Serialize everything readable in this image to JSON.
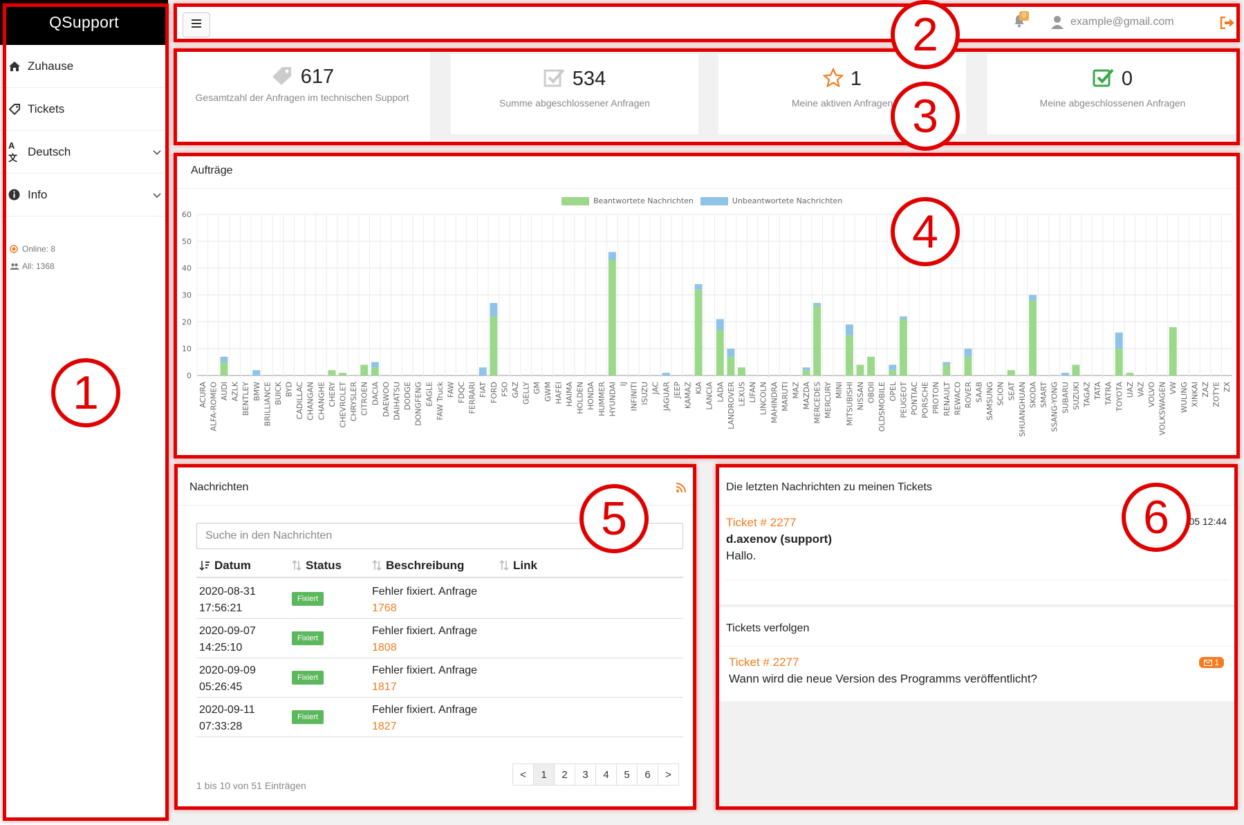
{
  "app": {
    "title": "QSupport"
  },
  "sidebar": {
    "items": [
      {
        "label": "Zuhause",
        "icon": "home-icon"
      },
      {
        "label": "Tickets",
        "icon": "tag-icon"
      },
      {
        "label": "Deutsch",
        "icon": "translate-icon"
      },
      {
        "label": "Info",
        "icon": "info-icon"
      }
    ],
    "online": "Online: 8",
    "all": "All: 1368"
  },
  "topbar": {
    "notification_count": "0",
    "user_email": "example@gmail.com"
  },
  "stats": [
    {
      "value": "617",
      "label": "Gesamtzahl der Anfragen im technischen Support",
      "icon": "tag-icon"
    },
    {
      "value": "534",
      "label": "Summe abgeschlossener Anfragen",
      "icon": "checkbox-icon"
    },
    {
      "value": "1",
      "label": "Meine aktiven Anfragen",
      "icon": "star-icon"
    },
    {
      "value": "0",
      "label": "Meine abgeschlossenen Anfragen",
      "icon": "checked-box-icon"
    }
  ],
  "chart_panel": {
    "title": "Aufträge"
  },
  "chart_data": {
    "type": "bar",
    "stacked": true,
    "ylim": [
      0,
      60
    ],
    "yticks": [
      0,
      10,
      20,
      30,
      40,
      50,
      60
    ],
    "legend_position": "top",
    "categories": [
      "ACURA",
      "ALFA-ROMEO",
      "AUDI",
      "AZLK",
      "BENTLEY",
      "BMW",
      "BRILLIANCE",
      "BUICK",
      "BYD",
      "CADILLAC",
      "CHANGAN",
      "CHANGHE",
      "CHERY",
      "CHEVROLET",
      "CHRYSLER",
      "CITROEN",
      "DACIA",
      "DAEWOO",
      "DAIHATSU",
      "DODGE",
      "DONGFENG",
      "EAGLE",
      "FAW Truck",
      "FAW",
      "FDQC",
      "FERRARI",
      "FIAT",
      "FORD",
      "FSO",
      "GAZ",
      "GELLY",
      "GM",
      "GWM",
      "HAFEI",
      "HAIMA",
      "HOLDEN",
      "HONDA",
      "HUMMER",
      "HYUNDAI",
      "IJ",
      "INFINITI",
      "ISUZU",
      "JAC",
      "JAGUAR",
      "JEEP",
      "KAMAZ",
      "KIA",
      "LANCIA",
      "LADA",
      "LANDROVER",
      "LEXUS",
      "LIFAN",
      "LINCOLN",
      "MAHINDRA",
      "MARUTI",
      "MAZ",
      "MAZDA",
      "MERCEDES",
      "MERCURY",
      "MINI",
      "MITSUBISHI",
      "NISSAN",
      "OBDII",
      "OLDSMOBILE",
      "OPEL",
      "PEUGEOT",
      "PONTIAC",
      "PORSCHE",
      "PROTON",
      "RENAULT",
      "REWACO",
      "ROVER",
      "SAAB",
      "SAMSUNG",
      "SCION",
      "SEAT",
      "SHUANGHUAN",
      "SKODA",
      "SMART",
      "SSANG-YONG",
      "SUBARU",
      "SUZUKI",
      "TAGAZ",
      "TATA",
      "TATRA",
      "TOYOTA",
      "UAZ",
      "VAZ",
      "VOLVO",
      "VOLKSWAGEN",
      "VW",
      "WULING",
      "XINKAI",
      "ZAZ",
      "ZOTYE",
      "ZX"
    ],
    "series": [
      {
        "name": "Beantwortete Nachrichten",
        "color": "#9bd88a",
        "values": [
          0,
          0,
          5,
          0,
          0,
          0,
          0,
          0,
          0,
          0,
          0,
          0,
          2,
          1,
          0,
          4,
          3,
          0,
          0,
          0,
          0,
          0,
          0,
          0,
          0,
          0,
          0,
          22,
          0,
          0,
          0,
          0,
          0,
          0,
          0,
          0,
          0,
          0,
          43,
          0,
          0,
          0,
          0,
          0,
          0,
          0,
          32,
          0,
          17,
          7,
          3,
          0,
          0,
          0,
          0,
          0,
          2,
          26,
          0,
          0,
          15,
          4,
          7,
          0,
          2,
          21,
          0,
          0,
          0,
          4,
          0,
          7,
          0,
          0,
          0,
          2,
          0,
          28,
          0,
          0,
          0,
          4,
          0,
          0,
          0,
          10,
          1,
          0,
          0,
          0,
          18,
          0,
          0,
          0,
          0,
          0
        ]
      },
      {
        "name": "Unbeantwortete Nachrichten",
        "color": "#8fc3e8",
        "values": [
          0,
          0,
          2,
          0,
          0,
          2,
          0,
          0,
          0,
          0,
          0,
          0,
          0,
          0,
          0,
          0,
          2,
          0,
          0,
          0,
          0,
          0,
          0,
          0,
          0,
          0,
          3,
          5,
          0,
          0,
          0,
          0,
          0,
          0,
          0,
          0,
          0,
          0,
          3,
          0,
          0,
          0,
          0,
          1,
          0,
          0,
          2,
          0,
          4,
          3,
          0,
          0,
          0,
          0,
          0,
          0,
          1,
          1,
          0,
          0,
          4,
          0,
          0,
          0,
          2,
          1,
          0,
          0,
          0,
          1,
          0,
          3,
          0,
          0,
          0,
          0,
          0,
          2,
          0,
          0,
          1,
          0,
          0,
          0,
          0,
          6,
          0,
          0,
          0,
          0,
          0,
          0,
          0,
          0,
          0,
          0
        ]
      }
    ]
  },
  "messages": {
    "title": "Nachrichten",
    "search_placeholder": "Suche in den Nachrichten",
    "columns": [
      "Datum",
      "Status",
      "Beschreibung",
      "Link"
    ],
    "rows": [
      {
        "date": "2020-08-31",
        "time": "17:56:21",
        "status": "Fixiert",
        "desc": "Fehler fixiert. Anfrage",
        "link": "1768"
      },
      {
        "date": "2020-09-07",
        "time": "14:25:10",
        "status": "Fixiert",
        "desc": "Fehler fixiert. Anfrage",
        "link": "1808"
      },
      {
        "date": "2020-09-09",
        "time": "05:26:45",
        "status": "Fixiert",
        "desc": "Fehler fixiert. Anfrage",
        "link": "1817"
      },
      {
        "date": "2020-09-11",
        "time": "07:33:28",
        "status": "Fixiert",
        "desc": "Fehler fixiert. Anfrage",
        "link": "1827"
      }
    ],
    "info": "1 bis 10 von 51 Einträgen",
    "pager": [
      "<",
      "1",
      "2",
      "3",
      "4",
      "5",
      "6",
      ">"
    ]
  },
  "latest": {
    "title": "Die letzten Nachrichten zu meinen Tickets",
    "ticket_ref": "Ticket # 2277",
    "time": "05 12:44",
    "user": "d.axenov (support)",
    "message": "Hallo."
  },
  "follow": {
    "title": "Tickets verfolgen",
    "ticket_ref": "Ticket # 2277",
    "message": "Wann wird die neue Version des Programms veröffentlicht?",
    "badge": "1"
  },
  "annotations": [
    "1",
    "2",
    "3",
    "4",
    "5",
    "6"
  ]
}
